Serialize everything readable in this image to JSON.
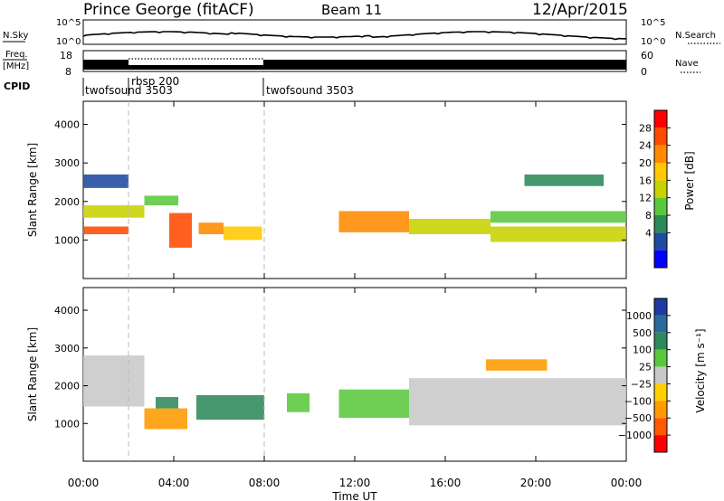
{
  "header": {
    "station": "Prince George (fitACF)",
    "beam": "Beam 11",
    "date": "12/Apr/2015"
  },
  "noise_panel": {
    "left_label": "N.Sky",
    "right_label": "N.Search",
    "tick_top": "10^5",
    "tick_bottom": "10^0"
  },
  "freq_panel": {
    "left_label_top": "Freq.",
    "left_label_bottom": "[MHz]",
    "left_ticks": [
      "18",
      "8"
    ],
    "right_ticks": [
      "60",
      "0"
    ],
    "right_label": "Nave"
  },
  "cpid": {
    "label": "CPID",
    "segments": [
      {
        "name": "twofsound 3503",
        "start_hour": 0
      },
      {
        "name": "rbsp 200",
        "start_hour": 2
      },
      {
        "name": "twofsound 3503",
        "start_hour": 8
      }
    ]
  },
  "power_colorbar": {
    "label": "Power [dB]",
    "ticks": [
      "28",
      "24",
      "20",
      "16",
      "12",
      "8",
      "4"
    ],
    "colors": [
      "#ff0000",
      "#ff4a00",
      "#ff8a00",
      "#ffc800",
      "#c8d200",
      "#5ac83c",
      "#2a8a5a",
      "#1e4aa0",
      "#0000ff"
    ]
  },
  "velocity_colorbar": {
    "label": "Velocity [m s⁻¹]",
    "ticks": [
      "1000",
      "500",
      "100",
      "25",
      "−25",
      "−100",
      "−500",
      "−1000"
    ],
    "colors": [
      "#1e3aa0",
      "#2a6a9a",
      "#2e8a5a",
      "#5ac83c",
      "#c8c8c8",
      "#ffd000",
      "#ff9a00",
      "#ff5a00",
      "#ff0000"
    ]
  },
  "chart_data": [
    {
      "type": "heatmap",
      "title": "Power",
      "ylabel": "Slant Range [km]",
      "ylim": [
        0,
        4600
      ],
      "yticks": [
        "1000",
        "2000",
        "3000",
        "4000"
      ],
      "x_hours": [
        0,
        4,
        8,
        12,
        16,
        20,
        24
      ],
      "bands": [
        {
          "t0": 0.0,
          "t1": 2.7,
          "r0": 1580,
          "r1": 1900,
          "level": 4
        },
        {
          "t0": 0.0,
          "t1": 2.0,
          "r0": 1150,
          "r1": 1350,
          "level": 1
        },
        {
          "t0": 0.0,
          "t1": 2.0,
          "r0": 2350,
          "r1": 2700,
          "level": 7
        },
        {
          "t0": 2.7,
          "t1": 4.2,
          "r0": 1900,
          "r1": 2150,
          "level": 5
        },
        {
          "t0": 3.8,
          "t1": 4.8,
          "r0": 800,
          "r1": 1700,
          "level": 1
        },
        {
          "t0": 5.1,
          "t1": 6.2,
          "r0": 1150,
          "r1": 1450,
          "level": 2
        },
        {
          "t0": 6.2,
          "t1": 7.9,
          "r0": 1000,
          "r1": 1350,
          "level": 3
        },
        {
          "t0": 11.3,
          "t1": 14.4,
          "r0": 1200,
          "r1": 1750,
          "level": 2
        },
        {
          "t0": 14.4,
          "t1": 18.0,
          "r0": 1150,
          "r1": 1550,
          "level": 4
        },
        {
          "t0": 18.0,
          "t1": 24.0,
          "r0": 950,
          "r1": 1350,
          "level": 4
        },
        {
          "t0": 18.0,
          "t1": 24.0,
          "r0": 1450,
          "r1": 1750,
          "level": 5
        },
        {
          "t0": 19.5,
          "t1": 23.0,
          "r0": 2400,
          "r1": 2700,
          "level": 6
        }
      ]
    },
    {
      "type": "heatmap",
      "title": "Velocity",
      "ylabel": "Slant Range [km]",
      "ylim": [
        0,
        4600
      ],
      "yticks": [
        "1000",
        "2000",
        "3000",
        "4000"
      ],
      "x_hours": [
        0,
        4,
        8,
        12,
        16,
        20,
        24
      ],
      "bands": [
        {
          "t0": 0.0,
          "t1": 2.7,
          "r0": 1450,
          "r1": 2800,
          "level": 4
        },
        {
          "t0": 2.7,
          "t1": 4.6,
          "r0": 850,
          "r1": 1400,
          "level": 6
        },
        {
          "t0": 3.2,
          "t1": 4.2,
          "r0": 1400,
          "r1": 1700,
          "level": 2
        },
        {
          "t0": 5.0,
          "t1": 8.0,
          "r0": 1100,
          "r1": 1750,
          "level": 2
        },
        {
          "t0": 9.0,
          "t1": 10.0,
          "r0": 1300,
          "r1": 1800,
          "level": 3
        },
        {
          "t0": 11.3,
          "t1": 14.4,
          "r0": 1150,
          "r1": 1900,
          "level": 3
        },
        {
          "t0": 14.4,
          "t1": 24.0,
          "r0": 950,
          "r1": 2200,
          "level": 4
        },
        {
          "t0": 17.8,
          "t1": 20.5,
          "r0": 2400,
          "r1": 2700,
          "level": 6
        }
      ]
    }
  ],
  "x_axis": {
    "ticks": [
      "00:00",
      "04:00",
      "08:00",
      "12:00",
      "16:00",
      "20:00",
      "00:00"
    ],
    "label": "Time UT"
  }
}
